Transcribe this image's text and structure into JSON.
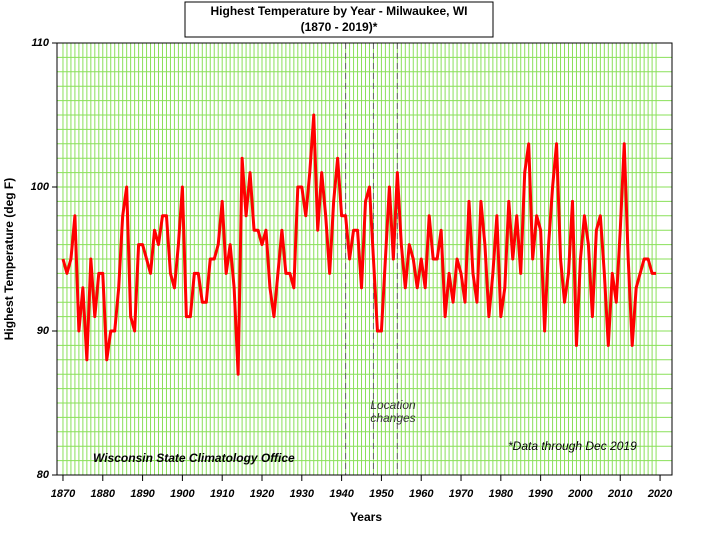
{
  "chart_data": {
    "type": "line",
    "title": [
      "Highest Temperature by Year - Milwaukee, WI",
      "(1870 - 2019)*"
    ],
    "x_label": "Years",
    "y_label": "Highest Temperature (deg F)",
    "annotations": {
      "location": [
        "Location",
        "changes"
      ],
      "source": "Wisconsin State Climatology Office",
      "note": "*Data through Dec 2019"
    },
    "location_change_years": [
      1941,
      1948,
      1954
    ],
    "x": [
      1870,
      1871,
      1872,
      1873,
      1874,
      1875,
      1876,
      1877,
      1878,
      1879,
      1880,
      1881,
      1882,
      1883,
      1884,
      1885,
      1886,
      1887,
      1888,
      1889,
      1890,
      1891,
      1892,
      1893,
      1894,
      1895,
      1896,
      1897,
      1898,
      1899,
      1900,
      1901,
      1902,
      1903,
      1904,
      1905,
      1906,
      1907,
      1908,
      1909,
      1910,
      1911,
      1912,
      1913,
      1914,
      1915,
      1916,
      1917,
      1918,
      1919,
      1920,
      1921,
      1922,
      1923,
      1924,
      1925,
      1926,
      1927,
      1928,
      1929,
      1930,
      1931,
      1932,
      1933,
      1934,
      1935,
      1936,
      1937,
      1938,
      1939,
      1940,
      1941,
      1942,
      1943,
      1944,
      1945,
      1946,
      1947,
      1948,
      1949,
      1950,
      1951,
      1952,
      1953,
      1954,
      1955,
      1956,
      1957,
      1958,
      1959,
      1960,
      1961,
      1962,
      1963,
      1964,
      1965,
      1966,
      1967,
      1968,
      1969,
      1970,
      1971,
      1972,
      1973,
      1974,
      1975,
      1976,
      1977,
      1978,
      1979,
      1980,
      1981,
      1982,
      1983,
      1984,
      1985,
      1986,
      1987,
      1988,
      1989,
      1990,
      1991,
      1992,
      1993,
      1994,
      1995,
      1996,
      1997,
      1998,
      1999,
      2000,
      2001,
      2002,
      2003,
      2004,
      2005,
      2006,
      2007,
      2008,
      2009,
      2010,
      2011,
      2012,
      2013,
      2014,
      2015,
      2016,
      2017,
      2018,
      2019
    ],
    "values": [
      95,
      94,
      95,
      98,
      90,
      93,
      88,
      95,
      91,
      94,
      94,
      88,
      90,
      90,
      93,
      98,
      100,
      91,
      90,
      96,
      96,
      95,
      94,
      97,
      96,
      98,
      98,
      94,
      93,
      96,
      100,
      91,
      91,
      94,
      94,
      92,
      92,
      95,
      95,
      96,
      99,
      94,
      96,
      93,
      87,
      102,
      98,
      101,
      97,
      97,
      96,
      97,
      93,
      91,
      94,
      97,
      94,
      94,
      93,
      100,
      100,
      98,
      101,
      105,
      97,
      101,
      98,
      94,
      99,
      102,
      98,
      98,
      95,
      97,
      97,
      93,
      99,
      100,
      95,
      90,
      90,
      95,
      100,
      95,
      101,
      96,
      93,
      96,
      95,
      93,
      95,
      93,
      98,
      95,
      95,
      97,
      91,
      94,
      92,
      95,
      94,
      92,
      99,
      94,
      92,
      99,
      96,
      91,
      94,
      98,
      91,
      93,
      99,
      95,
      98,
      94,
      101,
      103,
      95,
      98,
      97,
      90,
      96,
      100,
      103,
      95,
      92,
      94,
      99,
      89,
      95,
      98,
      96,
      91,
      97,
      98,
      94,
      89,
      94,
      92,
      97,
      103,
      95,
      89,
      93,
      94,
      95,
      95,
      94,
      94
    ],
    "color": "#ff0000",
    "grid_color": "#8ae05a",
    "xlim": [
      1868.5,
      2023
    ],
    "xticks": [
      1870,
      1880,
      1890,
      1900,
      1910,
      1920,
      1930,
      1940,
      1950,
      1960,
      1970,
      1980,
      1990,
      2000,
      2010,
      2020
    ],
    "ylim": [
      80,
      110
    ],
    "yticks": [
      80,
      90,
      100,
      110
    ],
    "grid": true
  }
}
